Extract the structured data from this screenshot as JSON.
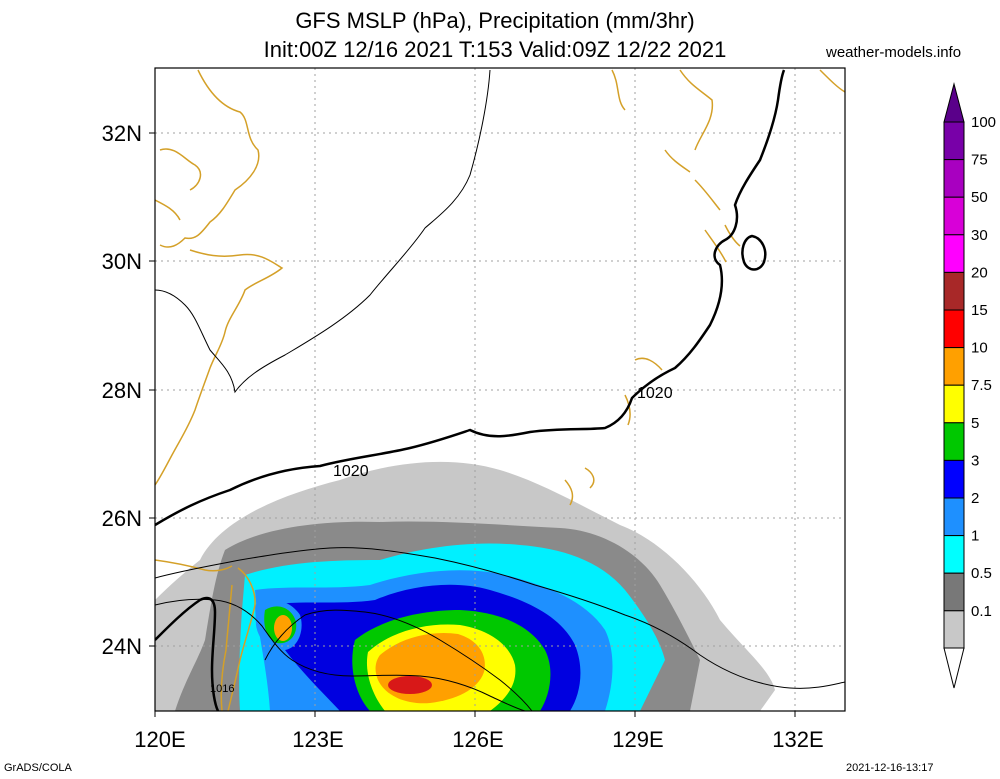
{
  "header": {
    "title_line1": "GFS MSLP (hPa), Precipitation (mm/3hr)",
    "title_line2": "Init:00Z 12/16 2021 T:153 Valid:09Z 12/22 2021",
    "site": "weather-models.info"
  },
  "footer": {
    "left": "GrADS/COLA",
    "right": "2021-12-16-13:17"
  },
  "axes": {
    "lat_labels": [
      "32N",
      "30N",
      "28N",
      "26N",
      "24N"
    ],
    "lon_labels": [
      "120E",
      "123E",
      "126E",
      "129E",
      "132E"
    ]
  },
  "isobars": {
    "label_a": "1020",
    "label_b": "1020",
    "label_c": "1016"
  },
  "colorbar": {
    "labels": [
      "100",
      "75",
      "50",
      "30",
      "20",
      "15",
      "10",
      "7.5",
      "5",
      "3",
      "2",
      "1",
      "0.5",
      "0.1"
    ],
    "colors": [
      "#7800a8",
      "#a800c0",
      "#d800d8",
      "#ff00ff",
      "#a82828",
      "#ff0000",
      "#ffa000",
      "#ffff00",
      "#00c800",
      "#0000ff",
      "#1e90ff",
      "#00ffff",
      "#787878",
      "#c8c8c8"
    ]
  },
  "colors": {
    "coast": "#d4a028",
    "grid": "#a0a0a0"
  }
}
